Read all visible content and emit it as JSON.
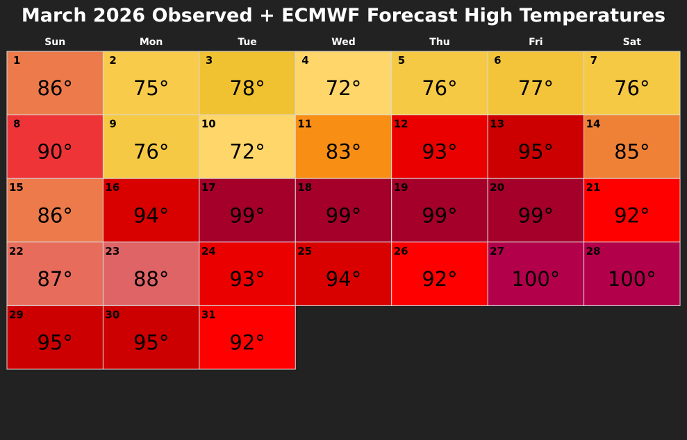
{
  "chart_data": {
    "type": "heatmap",
    "title": "March 2026 Observed + ECMWF Forecast High Temperatures",
    "weekdays": [
      "Sun",
      "Mon",
      "Tue",
      "Wed",
      "Thu",
      "Fri",
      "Sat"
    ],
    "first_weekday_index": 0,
    "unit_suffix": "°",
    "days": [
      {
        "day": 1,
        "high": 86,
        "color": "#ec7a4b"
      },
      {
        "day": 2,
        "high": 75,
        "color": "#f8cb4b"
      },
      {
        "day": 3,
        "high": 78,
        "color": "#f0c232"
      },
      {
        "day": 4,
        "high": 72,
        "color": "#fed669"
      },
      {
        "day": 5,
        "high": 76,
        "color": "#f5c944"
      },
      {
        "day": 6,
        "high": 77,
        "color": "#f3c43a"
      },
      {
        "day": 7,
        "high": 76,
        "color": "#f5c944"
      },
      {
        "day": 8,
        "high": 90,
        "color": "#ef3438"
      },
      {
        "day": 9,
        "high": 76,
        "color": "#f5c944"
      },
      {
        "day": 10,
        "high": 72,
        "color": "#fed669"
      },
      {
        "day": 11,
        "high": 83,
        "color": "#f98e15"
      },
      {
        "day": 12,
        "high": 93,
        "color": "#eb0000"
      },
      {
        "day": 13,
        "high": 95,
        "color": "#cc0000"
      },
      {
        "day": 14,
        "high": 85,
        "color": "#ef8137"
      },
      {
        "day": 15,
        "high": 86,
        "color": "#ec7a4b"
      },
      {
        "day": 16,
        "high": 94,
        "color": "#d90000"
      },
      {
        "day": 17,
        "high": 99,
        "color": "#a5002a"
      },
      {
        "day": 18,
        "high": 99,
        "color": "#a5002a"
      },
      {
        "day": 19,
        "high": 99,
        "color": "#a5002a"
      },
      {
        "day": 20,
        "high": 99,
        "color": "#a5002a"
      },
      {
        "day": 21,
        "high": 92,
        "color": "#ff0000"
      },
      {
        "day": 22,
        "high": 87,
        "color": "#e86c5b"
      },
      {
        "day": 23,
        "high": 88,
        "color": "#de6466"
      },
      {
        "day": 24,
        "high": 93,
        "color": "#eb0000"
      },
      {
        "day": 25,
        "high": 94,
        "color": "#d90000"
      },
      {
        "day": 26,
        "high": 92,
        "color": "#ff0000"
      },
      {
        "day": 27,
        "high": 100,
        "color": "#b3004a"
      },
      {
        "day": 28,
        "high": 100,
        "color": "#b3004a"
      },
      {
        "day": 29,
        "high": 95,
        "color": "#cc0000"
      },
      {
        "day": 30,
        "high": 95,
        "color": "#cc0000"
      },
      {
        "day": 31,
        "high": 92,
        "color": "#ff0000"
      }
    ],
    "colors": {
      "background": "#222222",
      "title_text": "#ffffff",
      "weekday_text": "#ffffff",
      "cell_border": "#d9d9d9",
      "cell_text": "#000000"
    }
  }
}
